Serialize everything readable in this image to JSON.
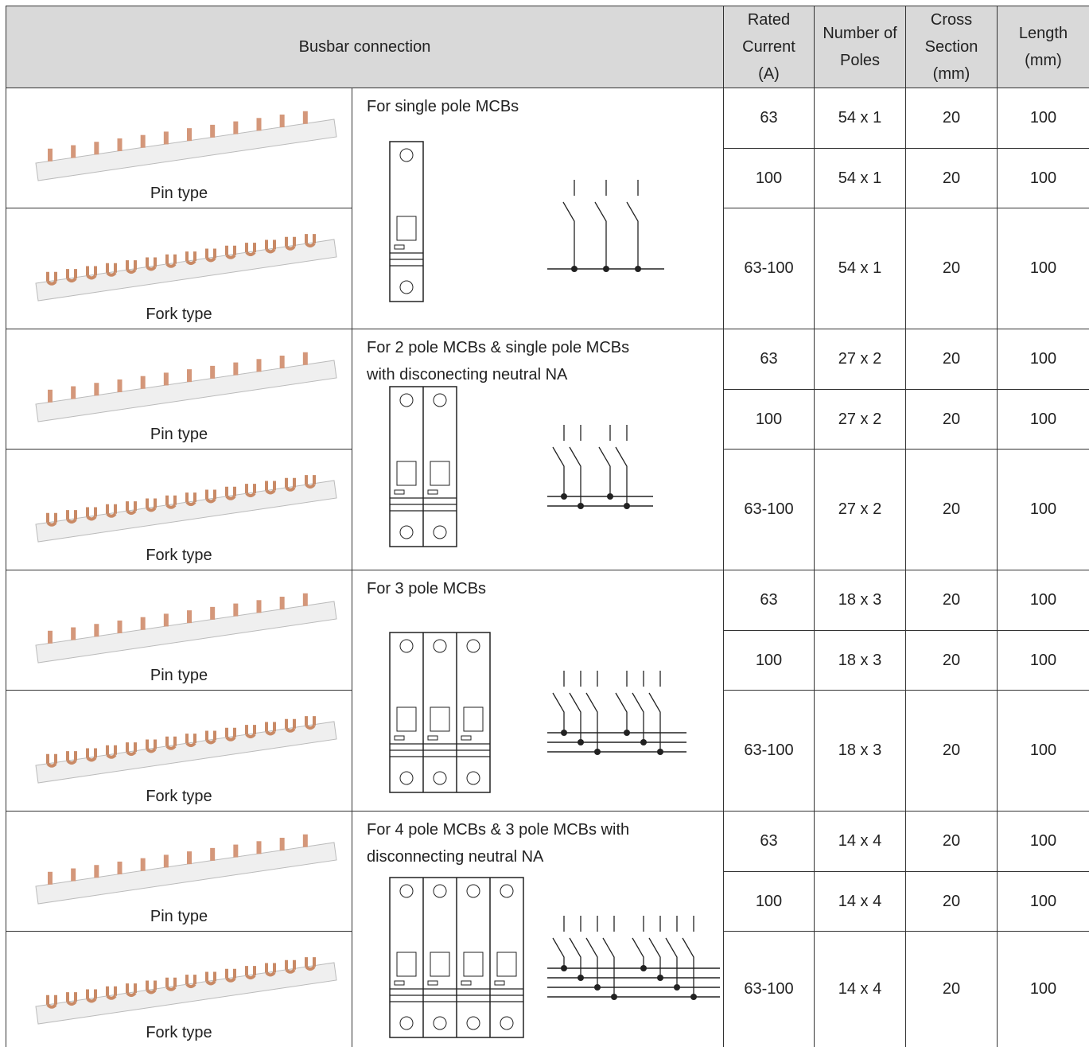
{
  "header": {
    "busbar": "Busbar connection",
    "columns": [
      [
        "Rated",
        "Current",
        "(A)"
      ],
      [
        "Number of",
        "Poles"
      ],
      [
        "Cross",
        "Section",
        "(mm)"
      ],
      [
        "Length",
        "(mm)"
      ]
    ]
  },
  "groups": [
    {
      "description": [
        "For single pole MCBs"
      ],
      "pin_label": "Pin type",
      "fork_label": "Fork type",
      "rows": [
        [
          "63",
          "54 x 1",
          "20",
          "100"
        ],
        [
          "100",
          "54 x 1",
          "20",
          "100"
        ],
        [
          "63-100",
          "54 x 1",
          "20",
          "100"
        ]
      ]
    },
    {
      "description": [
        "For 2 pole MCBs & single pole MCBs",
        "with disconecting neutral NA"
      ],
      "pin_label": "Pin type",
      "fork_label": "Fork type",
      "rows": [
        [
          "63",
          "27 x 2",
          "20",
          "100"
        ],
        [
          "100",
          "27 x 2",
          "20",
          "100"
        ],
        [
          "63-100",
          "27 x 2",
          "20",
          "100"
        ]
      ]
    },
    {
      "description": [
        "For 3 pole MCBs"
      ],
      "pin_label": "Pin type",
      "fork_label": "Fork type",
      "rows": [
        [
          "63",
          "18 x 3",
          "20",
          "100"
        ],
        [
          "100",
          "18 x 3",
          "20",
          "100"
        ],
        [
          "63-100",
          "18 x 3",
          "20",
          "100"
        ]
      ]
    },
    {
      "description": [
        "For 4 pole MCBs & 3 pole MCBs with",
        "disconnecting neutral NA"
      ],
      "pin_label": "Pin type",
      "fork_label": "Fork type",
      "rows": [
        [
          "63",
          "14 x 4",
          "20",
          "100"
        ],
        [
          "100",
          "14 x 4",
          "20",
          "100"
        ],
        [
          "63-100",
          "14 x 4",
          "20",
          "100"
        ]
      ]
    }
  ]
}
